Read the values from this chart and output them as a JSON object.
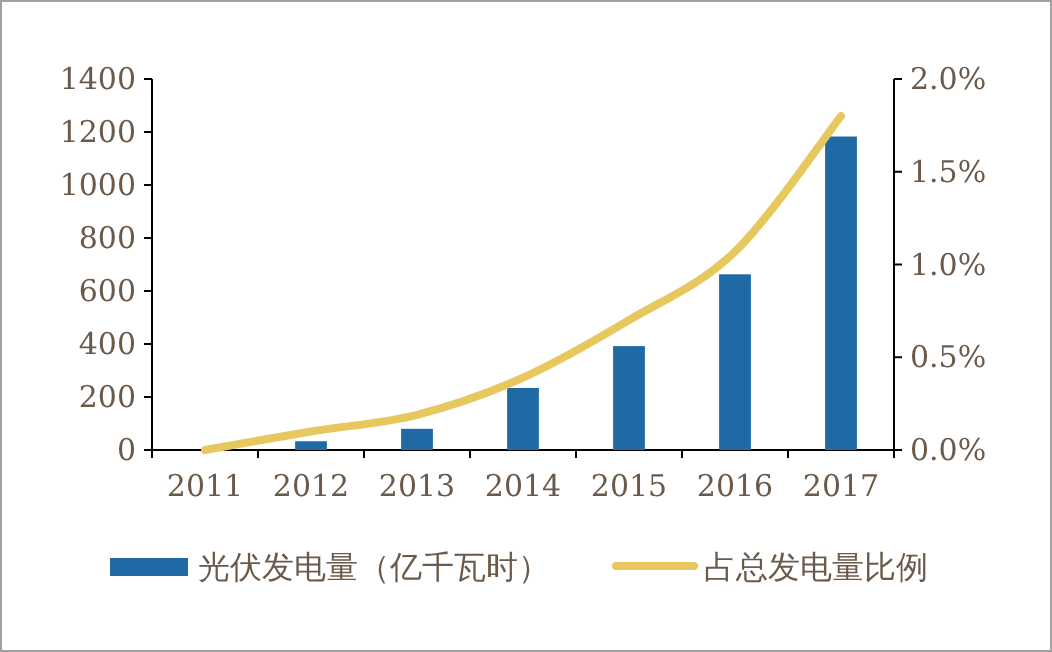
{
  "chart_data": {
    "type": "bar",
    "categories": [
      "2011",
      "2012",
      "2013",
      "2014",
      "2015",
      "2016",
      "2017"
    ],
    "series": [
      {
        "name": "光伏发电量（亿千瓦时）",
        "color": "#1f6aa5",
        "values": [
          null,
          33,
          80,
          234,
          392,
          663,
          1183
        ]
      },
      {
        "name": "占总发电量比例",
        "type": "line",
        "axis": "y2",
        "color": "#e6c85e",
        "values": [
          0.0,
          0.1,
          0.19,
          0.39,
          0.7,
          1.07,
          1.8
        ]
      }
    ],
    "ylim": [
      0,
      1400
    ],
    "yticks": [
      0,
      200,
      400,
      600,
      800,
      1000,
      1200,
      1400
    ],
    "y2lim": [
      0,
      2.0
    ],
    "y2ticks": [
      {
        "value": 0,
        "label": "0.0%"
      },
      {
        "value": 0.5,
        "label": "0.5%"
      },
      {
        "value": 1.0,
        "label": "1.0%"
      },
      {
        "value": 1.5,
        "label": "1.5%"
      },
      {
        "value": 2.0,
        "label": "2.0%"
      }
    ],
    "grid": false,
    "legend": "bottom",
    "marker": "none"
  }
}
